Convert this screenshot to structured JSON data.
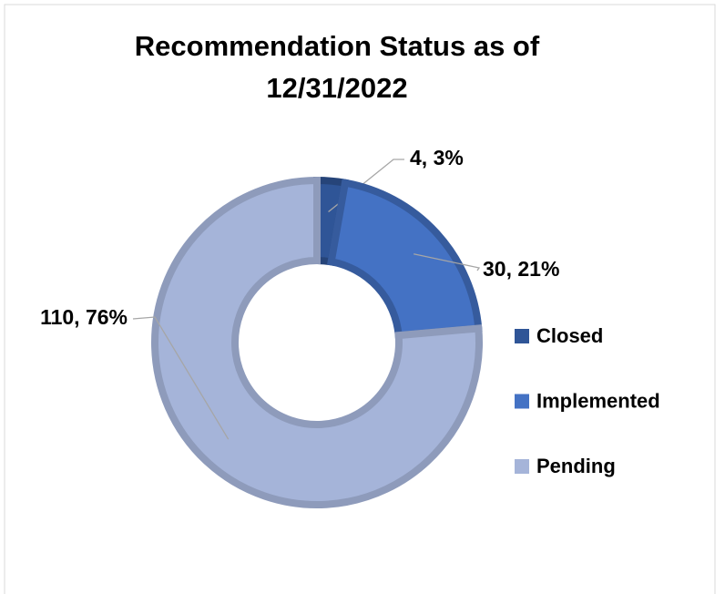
{
  "chart_data": {
    "type": "doughnut",
    "title": "Recommendation Status as of 12/31/2022",
    "categories": [
      "Closed",
      "Implemented",
      "Pending"
    ],
    "values": [
      4,
      30,
      110
    ],
    "value_labels": [
      "4, 3%",
      "30, 21%",
      "110, 76%"
    ],
    "colors": [
      "#2f5597",
      "#4472c4",
      "#a5b4d9"
    ],
    "legend": "right"
  }
}
